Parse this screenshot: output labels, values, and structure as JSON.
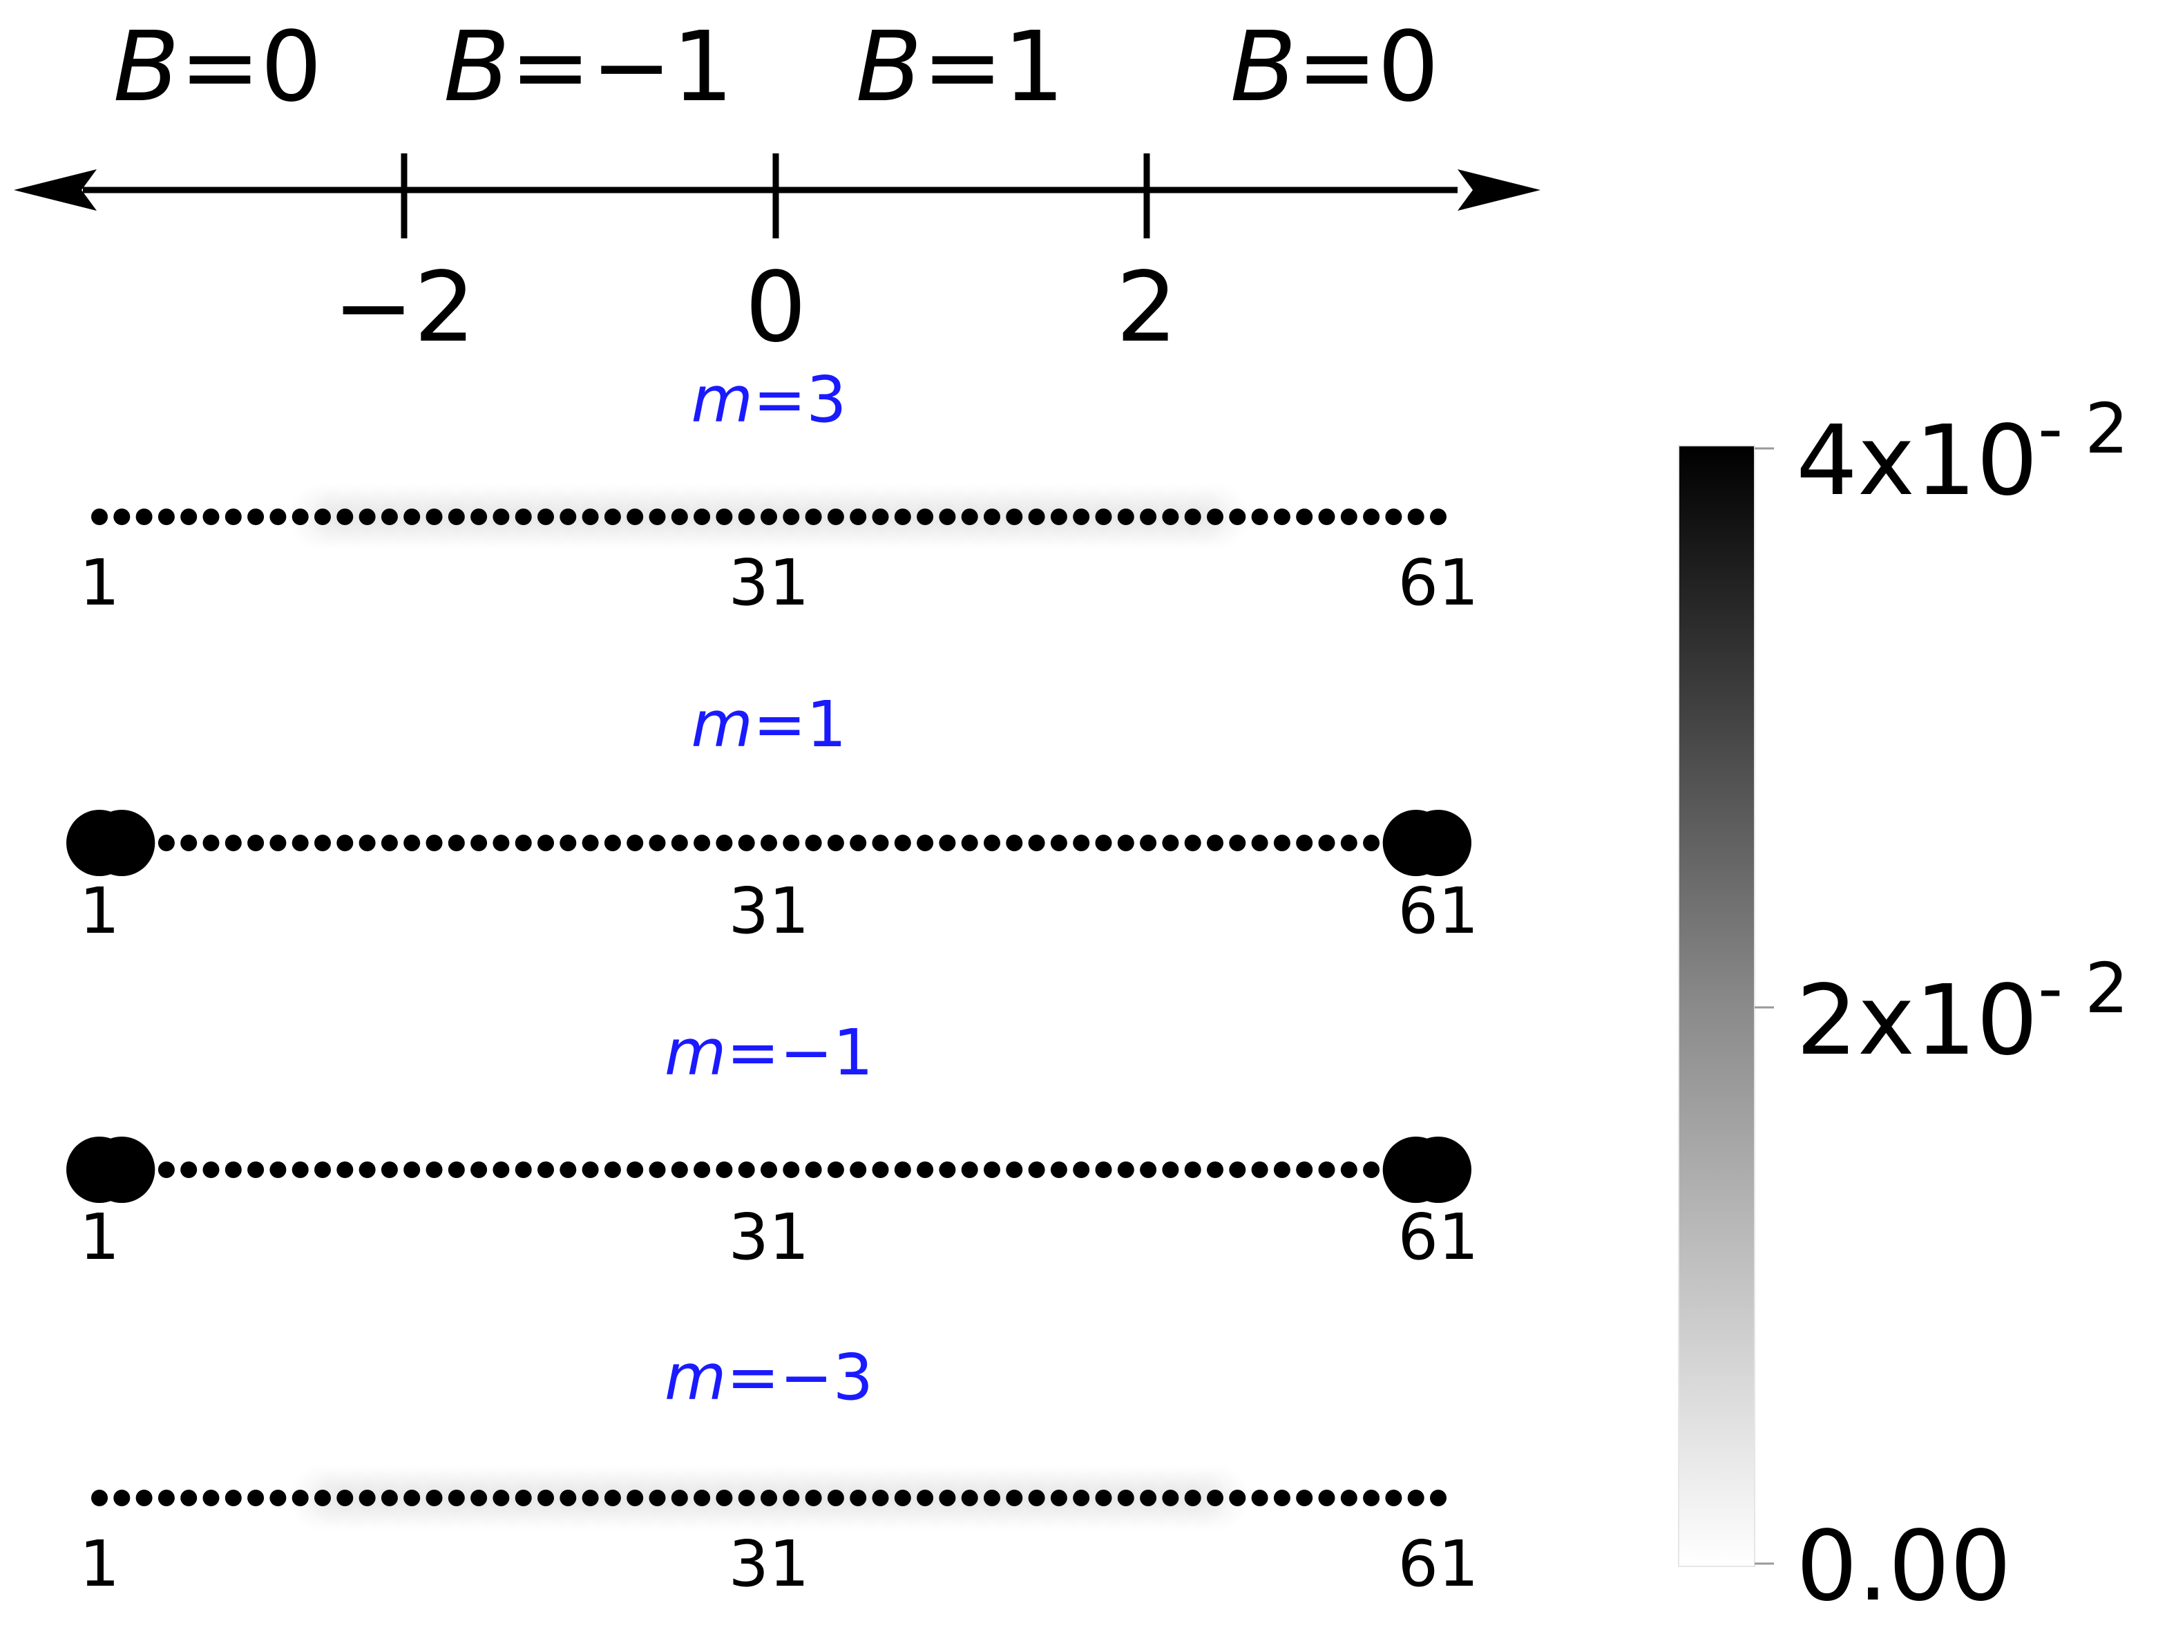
{
  "number_line": {
    "regions": [
      {
        "var": "B",
        "eq": "=0"
      },
      {
        "var": "B",
        "eq": "=−1"
      },
      {
        "var": "B",
        "eq": "=1"
      },
      {
        "var": "B",
        "eq": "=0"
      }
    ],
    "ticks": [
      "−2",
      "0",
      "2"
    ]
  },
  "chains": [
    {
      "m_var": "m",
      "m_eq": "=3",
      "m_value": 3,
      "site_labels": [
        "1",
        "31",
        "61"
      ]
    },
    {
      "m_var": "m",
      "m_eq": "=1",
      "m_value": 1,
      "site_labels": [
        "1",
        "31",
        "61"
      ]
    },
    {
      "m_var": "m",
      "m_eq": "=−1",
      "m_value": -1,
      "site_labels": [
        "1",
        "31",
        "61"
      ]
    },
    {
      "m_var": "m",
      "m_eq": "=−3",
      "m_value": -3,
      "site_labels": [
        "1",
        "31",
        "61"
      ]
    }
  ],
  "colorbar": {
    "ticks": [
      {
        "mantissa": "4x10",
        "exponent": "- 2",
        "value": 0.04
      },
      {
        "mantissa": "2x10",
        "exponent": "- 2",
        "value": 0.02
      },
      {
        "mantissa": "0.00",
        "exponent": "",
        "value": 0
      }
    ],
    "range": [
      0,
      0.04
    ],
    "colors": {
      "low": "#ffffff",
      "high": "#000000"
    }
  },
  "colors": {
    "m_label": "#1a1aff",
    "axis": "#000000",
    "site": "#000000"
  }
}
